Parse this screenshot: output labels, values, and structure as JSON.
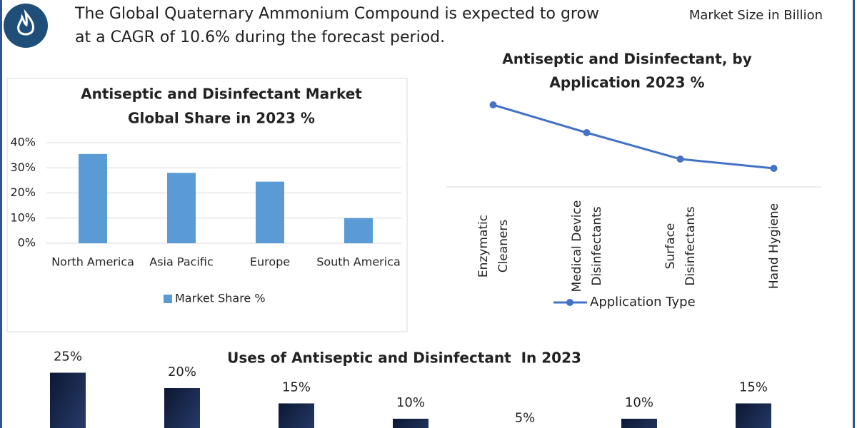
{
  "header": {
    "lines": [
      "The Global Quaternary Ammonium Compound is expected to grow",
      "at a CAGR of 10.6% during the forecast period."
    ],
    "note": "Market Size in Billion"
  },
  "chart_data": [
    {
      "type": "bar",
      "title": [
        "Antiseptic and Disinfectant Market",
        "Global Share in 2023 %"
      ],
      "categories": [
        "North America",
        "Asia Pacific",
        "Europe",
        "South America"
      ],
      "series": [
        {
          "name": "Market Share %",
          "color": "#5b9bd5",
          "values": [
            35.5,
            28,
            24.5,
            10
          ]
        }
      ],
      "ylim": [
        0,
        40
      ],
      "yticks": [
        {
          "value": 0,
          "label": "0%"
        },
        {
          "value": 10,
          "label": "10%"
        },
        {
          "value": 20,
          "label": "20%"
        },
        {
          "value": 30,
          "label": "30%"
        },
        {
          "value": 40,
          "label": "40%"
        }
      ],
      "grid": true,
      "legend": "bottom"
    },
    {
      "type": "line",
      "title": [
        "Antiseptic and Disinfectant, by",
        "Application 2023 %"
      ],
      "categories": [
        "Enzymatic Cleaners",
        "Medical Device Disinfectants",
        "Surface Disinfectants",
        "Hand Hygiene"
      ],
      "series": [
        {
          "name": "Application Type",
          "color": "#4472c4",
          "values": [
            28.75,
            19,
            9.75,
            6.5
          ]
        }
      ],
      "ylim": [
        0,
        40
      ],
      "grid": false,
      "legend": "bottom"
    },
    {
      "type": "bar",
      "title": "Uses of Antiseptic and Disinfectant  In 2023",
      "categories": [
        null,
        null,
        null,
        null,
        null,
        null,
        null
      ],
      "series": [
        {
          "color": "#13234a",
          "values": [
            25,
            20,
            15,
            10,
            5,
            10,
            15
          ],
          "value_labels": [
            "25%",
            "20%",
            "15%",
            "10%",
            "5%",
            "10%",
            "15%"
          ]
        }
      ],
      "ylim": [
        0,
        30
      ],
      "grid": false
    }
  ]
}
